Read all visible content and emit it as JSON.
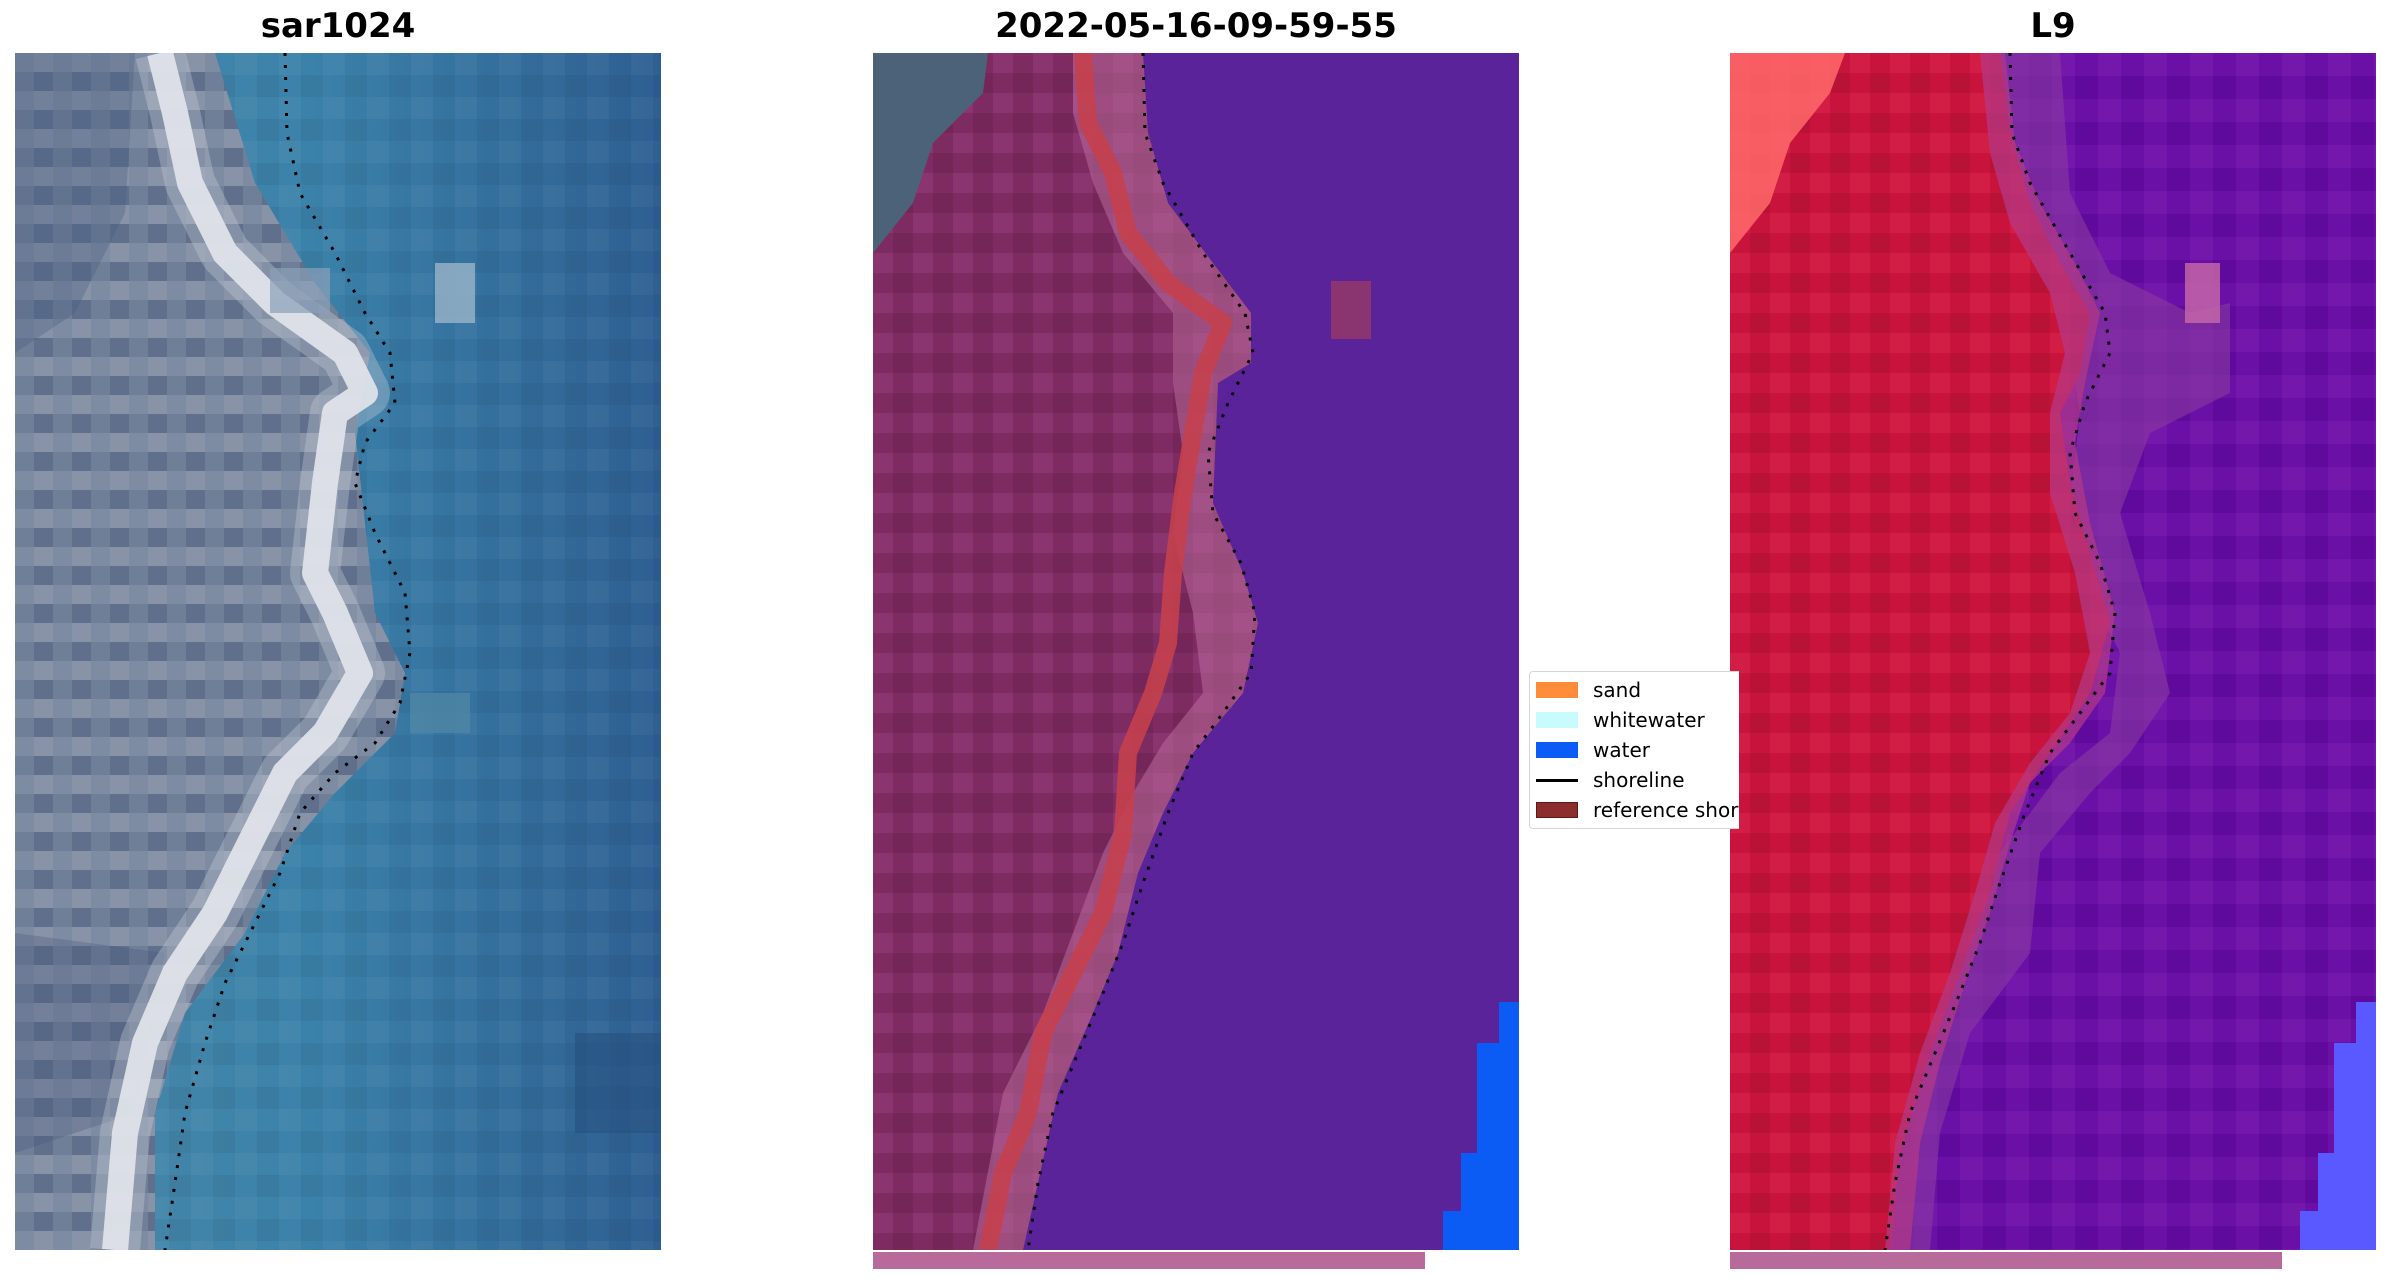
{
  "panels": [
    {
      "title": "sar1024"
    },
    {
      "title": "2022-05-16-09-59-55"
    },
    {
      "title": "L9"
    }
  ],
  "legend": {
    "items": [
      {
        "label": "sand",
        "color": "#ff8c3a",
        "kind": "patch"
      },
      {
        "label": "whitewater",
        "color": "#c8fbfb",
        "kind": "patch"
      },
      {
        "label": "water",
        "color": "#0a5cf5",
        "kind": "patch"
      },
      {
        "label": "shoreline",
        "color": "#000000",
        "kind": "line"
      },
      {
        "label": "reference shoreline",
        "color": "#8c2e2e",
        "kind": "patch"
      }
    ]
  },
  "colors": {
    "rgb_sea": "#2f6e98",
    "rgb_land": "#6f7f98",
    "classified_water": "#5a239a",
    "classified_land": "#7e2b62",
    "reference_band": "#c4404e",
    "false_color_land": "#c8143c",
    "false_color_water": "#6a10a6",
    "blue_edge": "#0a5cf5",
    "bottom_band": "#b86a9a"
  }
}
